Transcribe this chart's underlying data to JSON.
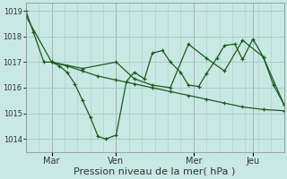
{
  "background_color": "#c8e8e4",
  "grid_color": "#a8ccc8",
  "line_color": "#1a5c1a",
  "ylabel_ticks": [
    1014,
    1015,
    1016,
    1017,
    1018,
    1019
  ],
  "xlabel": "Pression niveau de la mer( hPa )",
  "x_tick_labels": [
    "Mar",
    "Ven",
    "Mer",
    "Jeu"
  ],
  "ylim_low": 1013.5,
  "ylim_high": 1019.3,
  "xlim_low": 0,
  "xlim_high": 100,
  "x_tick_positions": [
    10,
    35,
    65,
    88
  ],
  "line1_x": [
    0,
    3,
    7,
    10,
    13,
    16,
    19,
    22,
    25,
    28,
    31,
    35,
    39,
    42,
    46,
    49,
    53,
    56,
    60,
    63,
    67,
    70,
    74,
    77,
    81,
    84,
    88,
    92,
    96,
    100
  ],
  "line1_y": [
    1019.0,
    1018.15,
    1017.0,
    1017.0,
    1016.85,
    1016.6,
    1016.15,
    1015.5,
    1014.85,
    1014.1,
    1014.0,
    1014.15,
    1016.25,
    1016.6,
    1016.35,
    1017.35,
    1017.45,
    1017.0,
    1016.6,
    1016.1,
    1016.05,
    1016.55,
    1017.15,
    1017.65,
    1017.7,
    1017.1,
    1017.9,
    1017.2,
    1016.1,
    1015.35
  ],
  "line2_x": [
    10,
    16,
    22,
    28,
    35,
    42,
    49,
    56,
    63,
    70,
    77,
    84,
    92,
    100
  ],
  "line2_y": [
    1017.0,
    1016.85,
    1016.65,
    1016.45,
    1016.3,
    1016.15,
    1016.0,
    1015.85,
    1015.7,
    1015.55,
    1015.4,
    1015.25,
    1015.15,
    1015.1
  ],
  "line3_x": [
    0,
    10,
    22,
    35,
    42,
    49,
    56,
    63,
    70,
    77,
    84,
    92,
    100
  ],
  "line3_y": [
    1018.8,
    1017.0,
    1016.75,
    1017.0,
    1016.35,
    1016.1,
    1016.0,
    1017.7,
    1017.15,
    1016.65,
    1017.85,
    1017.2,
    1015.35
  ],
  "marker_size": 3.5,
  "line_width": 0.9,
  "ytick_fontsize": 6,
  "xtick_fontsize": 7,
  "xlabel_fontsize": 8
}
